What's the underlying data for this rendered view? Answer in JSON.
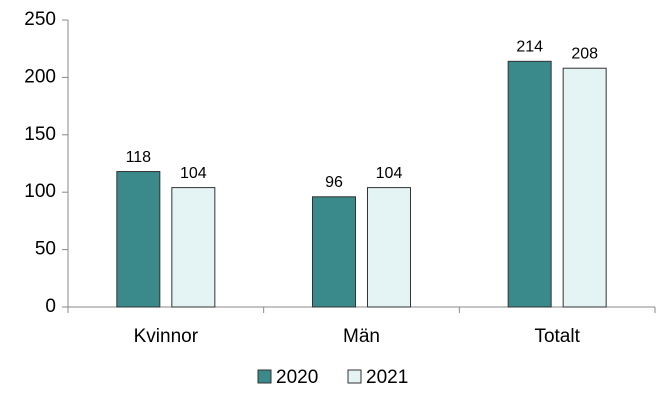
{
  "chart_data": {
    "type": "bar",
    "categories": [
      "Kvinnor",
      "Män",
      "Totalt"
    ],
    "series": [
      {
        "name": "2020",
        "color": "#3a8a8c",
        "values": [
          118,
          96,
          214
        ]
      },
      {
        "name": "2021",
        "color": "#e4f3f3",
        "values": [
          104,
          104,
          208
        ]
      }
    ],
    "ylim": [
      0,
      250
    ],
    "yticks": [
      0,
      50,
      100,
      150,
      200,
      250
    ],
    "grid": false,
    "legend": "bottom"
  }
}
